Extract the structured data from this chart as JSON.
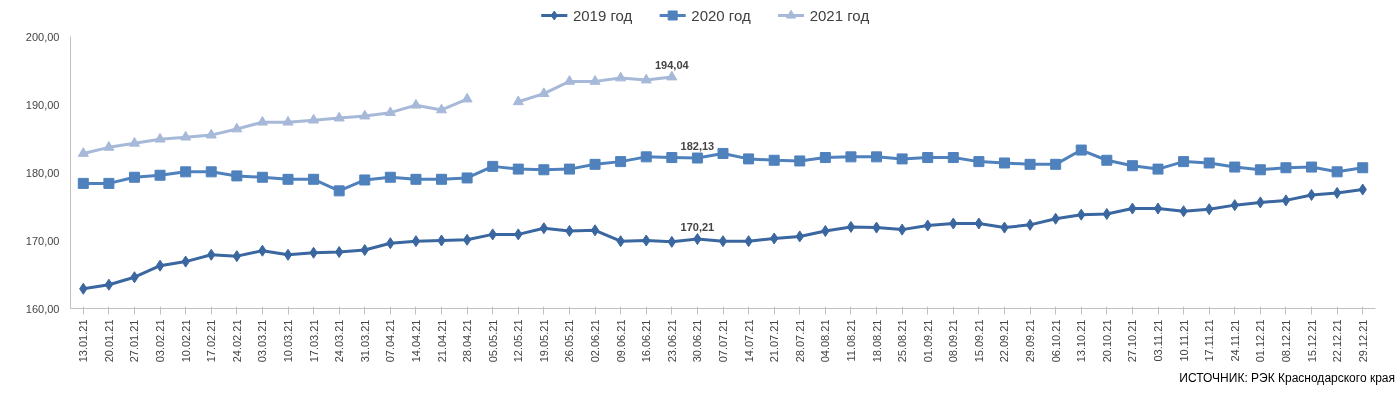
{
  "chart_data": {
    "type": "line",
    "categories": [
      "13.01.21",
      "20.01.21",
      "27.01.21",
      "03.02.21",
      "10.02.21",
      "17.02.21",
      "24.02.21",
      "03.03.21",
      "10.03.21",
      "17.03.21",
      "24.03.21",
      "31.03.21",
      "07.04.21",
      "14.04.21",
      "21.04.21",
      "28.04.21",
      "05.05.21",
      "12.05.21",
      "19.05.21",
      "26.05.21",
      "02.06.21",
      "09.06.21",
      "16.06.21",
      "23.06.21",
      "30.06.21",
      "07.07.21",
      "14.07.21",
      "21.07.21",
      "28.07.21",
      "04.08.21",
      "11.08.21",
      "18.08.21",
      "25.08.21",
      "01.09.21",
      "08.09.21",
      "15.09.21",
      "22.09.21",
      "29.09.21",
      "06.10.21",
      "13.10.21",
      "20.10.21",
      "27.10.21",
      "03.11.21",
      "10.11.21",
      "17.11.21",
      "24.11.21",
      "01.12.21",
      "08.12.21",
      "15.12.21",
      "22.12.21",
      "29.12.21"
    ],
    "series": [
      {
        "name": "2019 год",
        "color": "#3a67a0",
        "marker": "diamond",
        "values": [
          162.9,
          163.5,
          164.6,
          166.3,
          166.9,
          167.9,
          167.7,
          168.5,
          167.9,
          168.2,
          168.3,
          168.6,
          169.6,
          169.9,
          170.0,
          170.1,
          170.9,
          170.9,
          171.8,
          171.4,
          171.5,
          169.9,
          170.0,
          169.8,
          170.21,
          169.9,
          169.9,
          170.3,
          170.6,
          171.4,
          172.0,
          171.9,
          171.6,
          172.2,
          172.5,
          172.5,
          171.9,
          172.3,
          173.2,
          173.8,
          173.9,
          174.7,
          174.7,
          174.3,
          174.6,
          175.2,
          175.6,
          175.9,
          176.7,
          177.0,
          177.5
        ]
      },
      {
        "name": "2020 год",
        "color": "#4f81bd",
        "marker": "square",
        "values": [
          178.4,
          178.4,
          179.3,
          179.6,
          180.1,
          180.1,
          179.5,
          179.3,
          179.0,
          179.0,
          177.3,
          178.9,
          179.3,
          179.0,
          179.0,
          179.2,
          180.9,
          180.5,
          180.4,
          180.5,
          181.2,
          181.6,
          182.3,
          182.2,
          182.13,
          182.8,
          182.0,
          181.8,
          181.7,
          182.2,
          182.3,
          182.3,
          182.0,
          182.2,
          182.2,
          181.6,
          181.4,
          181.2,
          181.2,
          183.3,
          181.8,
          181.0,
          180.5,
          181.6,
          181.4,
          180.8,
          180.4,
          180.7,
          180.8,
          180.1,
          180.7
        ]
      },
      {
        "name": "2021 год",
        "color": "#a7b9d9",
        "marker": "triangle",
        "values": [
          182.8,
          183.7,
          184.3,
          184.9,
          185.2,
          185.5,
          186.4,
          187.4,
          187.4,
          187.7,
          188.0,
          188.3,
          188.8,
          189.9,
          189.2,
          190.8,
          null,
          190.4,
          191.6,
          193.4,
          193.4,
          193.9,
          193.6,
          194.04,
          null,
          null,
          null,
          null,
          null,
          null,
          null,
          null,
          null,
          null,
          null,
          null,
          null,
          null,
          null,
          null,
          null,
          null,
          null,
          null,
          null,
          null,
          null,
          null,
          null,
          null,
          null
        ]
      }
    ],
    "ylim": [
      160,
      200
    ],
    "yticks": [
      {
        "value": 160,
        "label": "160,00"
      },
      {
        "value": 170,
        "label": "170,00"
      },
      {
        "value": 180,
        "label": "180,00"
      },
      {
        "value": 190,
        "label": "190,00"
      },
      {
        "value": 200,
        "label": "200,00"
      }
    ],
    "grid": false,
    "legend": "top",
    "line_style": "solid",
    "annotations": [
      {
        "text": "194,04",
        "x": "23.06.21",
        "y": 194.04
      },
      {
        "text": "182,13",
        "x": "30.06.21",
        "y": 182.13
      },
      {
        "text": "170,21",
        "x": "30.06.21",
        "y": 170.21
      },
      "ИСТОЧНИК: РЭК Краснодарского края"
    ]
  }
}
